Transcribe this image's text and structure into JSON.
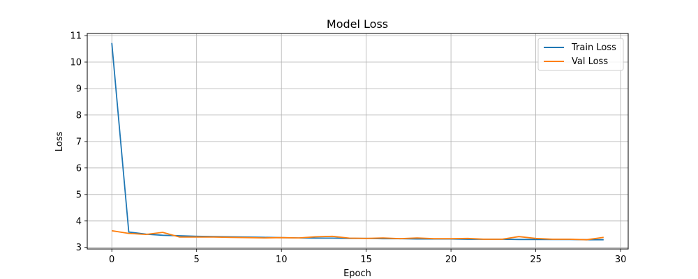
{
  "chart_data": {
    "type": "line",
    "title": "Model Loss",
    "xlabel": "Epoch",
    "ylabel": "Loss",
    "xlim": [
      -1.45,
      30.45
    ],
    "ylim": [
      2.94,
      11.08
    ],
    "xticks": [
      0,
      5,
      10,
      15,
      20,
      25,
      30
    ],
    "yticks": [
      3,
      4,
      5,
      6,
      7,
      8,
      9,
      10,
      11
    ],
    "grid": true,
    "legend_position": "top-right",
    "x": [
      0,
      1,
      2,
      3,
      4,
      5,
      6,
      7,
      8,
      9,
      10,
      11,
      12,
      13,
      14,
      15,
      16,
      17,
      18,
      19,
      20,
      21,
      22,
      23,
      24,
      25,
      26,
      27,
      28,
      29
    ],
    "series": [
      {
        "name": "Train Loss",
        "color": "#1f77b4",
        "values": [
          10.72,
          3.58,
          3.5,
          3.46,
          3.44,
          3.42,
          3.41,
          3.4,
          3.39,
          3.38,
          3.37,
          3.36,
          3.35,
          3.35,
          3.34,
          3.34,
          3.33,
          3.33,
          3.32,
          3.32,
          3.32,
          3.31,
          3.31,
          3.31,
          3.3,
          3.3,
          3.3,
          3.3,
          3.29,
          3.29
        ]
      },
      {
        "name": "Val Loss",
        "color": "#ff7f0e",
        "values": [
          3.63,
          3.53,
          3.49,
          3.57,
          3.39,
          3.39,
          3.39,
          3.38,
          3.37,
          3.36,
          3.37,
          3.36,
          3.4,
          3.42,
          3.35,
          3.34,
          3.36,
          3.33,
          3.36,
          3.33,
          3.33,
          3.34,
          3.31,
          3.31,
          3.41,
          3.34,
          3.31,
          3.31,
          3.29,
          3.38
        ]
      }
    ]
  }
}
